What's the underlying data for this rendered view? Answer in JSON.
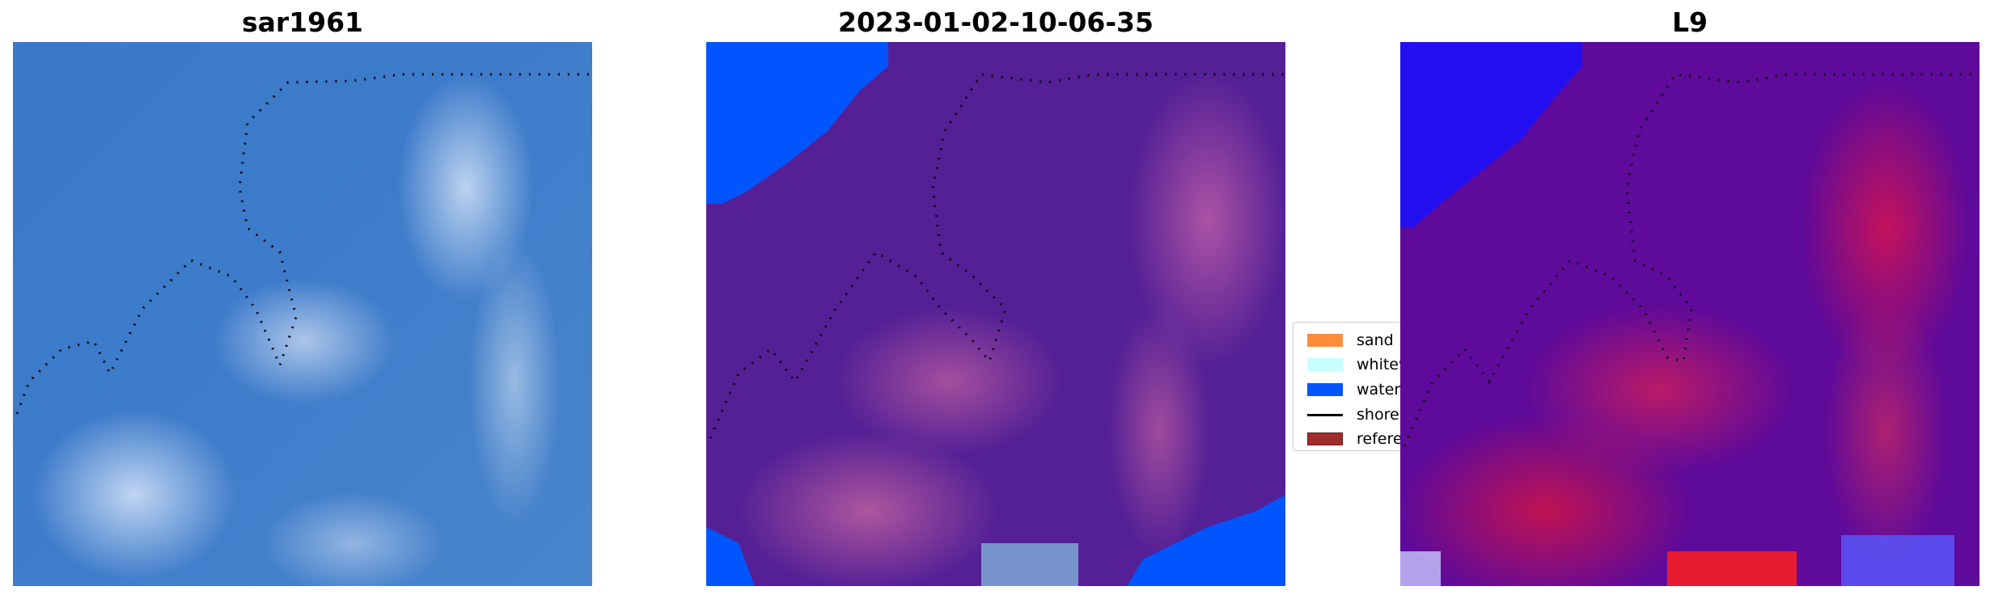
{
  "panels": [
    {
      "title": "sar1961",
      "image": "satellite-rgb"
    },
    {
      "title": "2023-01-02-10-06-35",
      "image": "classification-overlay"
    },
    {
      "title": "L9",
      "image": "index-map"
    }
  ],
  "legend": {
    "items": [
      {
        "label": "sand",
        "color": "#ff8c3a",
        "kind": "patch"
      },
      {
        "label": "whitewater",
        "color": "#c8ffff",
        "kind": "patch"
      },
      {
        "label": "water",
        "color": "#0055ff",
        "kind": "patch"
      },
      {
        "label": "shoreline",
        "color": "#000000",
        "kind": "line"
      },
      {
        "label": "reference",
        "color": "#a02c2c",
        "kind": "patch"
      }
    ]
  }
}
